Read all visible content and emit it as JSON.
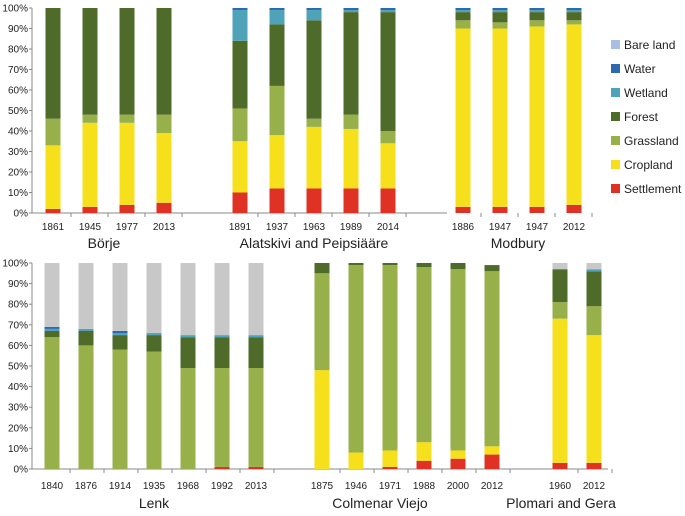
{
  "chart_data": {
    "type": "bar",
    "stacked": true,
    "title": "",
    "ylabel": "",
    "ylim": [
      0,
      100
    ],
    "y_ticks": [
      "0%",
      "10%",
      "20%",
      "30%",
      "40%",
      "50%",
      "60%",
      "70%",
      "80%",
      "90%",
      "100%"
    ],
    "grid": false,
    "legend_position": "right of top panel",
    "classes": [
      {
        "name": "Settlement",
        "color": "#e03224"
      },
      {
        "name": "Cropland",
        "color": "#f5e01b"
      },
      {
        "name": "Grassland",
        "color": "#98b04a"
      },
      {
        "name": "Forest",
        "color": "#4e6b2a"
      },
      {
        "name": "Wetland",
        "color": "#4ea3b8"
      },
      {
        "name": "Water",
        "color": "#2c69b0"
      },
      {
        "name": "Bare land",
        "color": "#a8bfe3"
      }
    ],
    "unlabeled_color": "#c8c8c8",
    "panels": [
      {
        "name": "top",
        "groups": [
          {
            "label": "Börje",
            "bars": [
              {
                "year": "1861",
                "values": [
                  2,
                  31,
                  13,
                  54,
                  0,
                  0,
                  0
                ]
              },
              {
                "year": "1945",
                "values": [
                  3,
                  41,
                  4,
                  52,
                  0,
                  0,
                  0
                ]
              },
              {
                "year": "1977",
                "values": [
                  4,
                  40,
                  4,
                  52,
                  0,
                  0,
                  0
                ]
              },
              {
                "year": "2013",
                "values": [
                  5,
                  34,
                  9,
                  52,
                  0,
                  0,
                  0
                ]
              }
            ]
          },
          {
            "label": "Alatskivi and Peipsiääre",
            "bars": [
              {
                "year": "1891",
                "values": [
                  10,
                  25,
                  16,
                  33,
                  15,
                  1,
                  0
                ]
              },
              {
                "year": "1937",
                "values": [
                  12,
                  26,
                  24,
                  30,
                  7,
                  1,
                  0
                ]
              },
              {
                "year": "1963",
                "values": [
                  12,
                  30,
                  4,
                  48,
                  5,
                  1,
                  0
                ]
              },
              {
                "year": "1989",
                "values": [
                  12,
                  29,
                  7,
                  50,
                  1,
                  1,
                  0
                ]
              },
              {
                "year": "2014",
                "values": [
                  12,
                  22,
                  6,
                  58,
                  1,
                  1,
                  0
                ]
              }
            ]
          },
          {
            "label": "Modbury",
            "bars": [
              {
                "year": "1886",
                "values": [
                  3,
                  87,
                  4,
                  4,
                  1,
                  1,
                  0
                ]
              },
              {
                "year": "1947",
                "values": [
                  3,
                  87,
                  3,
                  5,
                  1,
                  1,
                  0
                ]
              },
              {
                "year": "1947",
                "values": [
                  3,
                  88,
                  3,
                  4,
                  1,
                  1,
                  0
                ]
              },
              {
                "year": "2012",
                "values": [
                  4,
                  88,
                  2,
                  4,
                  1,
                  1,
                  0
                ]
              }
            ]
          }
        ]
      },
      {
        "name": "bottom",
        "groups": [
          {
            "label": "Lenk",
            "bars": [
              {
                "year": "1840",
                "values": [
                  0,
                  0,
                  64,
                  3,
                  1,
                  1,
                  0
                ],
                "unlabeled": 31
              },
              {
                "year": "1876",
                "values": [
                  0,
                  0,
                  60,
                  7,
                  1,
                  0,
                  0
                ],
                "unlabeled": 32
              },
              {
                "year": "1914",
                "values": [
                  0,
                  0,
                  58,
                  7,
                  1,
                  1,
                  0
                ],
                "unlabeled": 33
              },
              {
                "year": "1935",
                "values": [
                  0,
                  0,
                  57,
                  8,
                  1,
                  0,
                  0
                ],
                "unlabeled": 34
              },
              {
                "year": "1968",
                "values": [
                  0,
                  0,
                  49,
                  15,
                  1,
                  0,
                  0
                ],
                "unlabeled": 35
              },
              {
                "year": "1992",
                "values": [
                  1,
                  0,
                  48,
                  15,
                  1,
                  0,
                  0
                ],
                "unlabeled": 35
              },
              {
                "year": "2013",
                "values": [
                  1,
                  0,
                  48,
                  15,
                  1,
                  0,
                  0
                ],
                "unlabeled": 35
              }
            ]
          },
          {
            "label": "Colmenar Viejo",
            "bars": [
              {
                "year": "1875",
                "values": [
                  0,
                  48,
                  47,
                  5,
                  0,
                  0,
                  0
                ]
              },
              {
                "year": "1946",
                "values": [
                  0,
                  8,
                  91,
                  1,
                  0,
                  0,
                  0
                ]
              },
              {
                "year": "1971",
                "values": [
                  1,
                  8,
                  90,
                  1,
                  0,
                  0,
                  0
                ]
              },
              {
                "year": "1988",
                "values": [
                  4,
                  9,
                  85,
                  2,
                  0,
                  0,
                  0
                ]
              },
              {
                "year": "2000",
                "values": [
                  5,
                  4,
                  88,
                  3,
                  0,
                  0,
                  0
                ]
              },
              {
                "year": "2012",
                "values": [
                  7,
                  4,
                  85,
                  3,
                  0,
                  0,
                  0
                ]
              }
            ]
          },
          {
            "label": "Plomari and Gera",
            "bars": [
              {
                "year": "1960",
                "values": [
                  3,
                  70,
                  8,
                  16,
                  0,
                  0,
                  0
                ],
                "unlabeled": 3
              },
              {
                "year": "2012",
                "values": [
                  3,
                  62,
                  14,
                  17,
                  1,
                  0,
                  0
                ],
                "unlabeled": 3
              }
            ]
          }
        ]
      }
    ]
  }
}
